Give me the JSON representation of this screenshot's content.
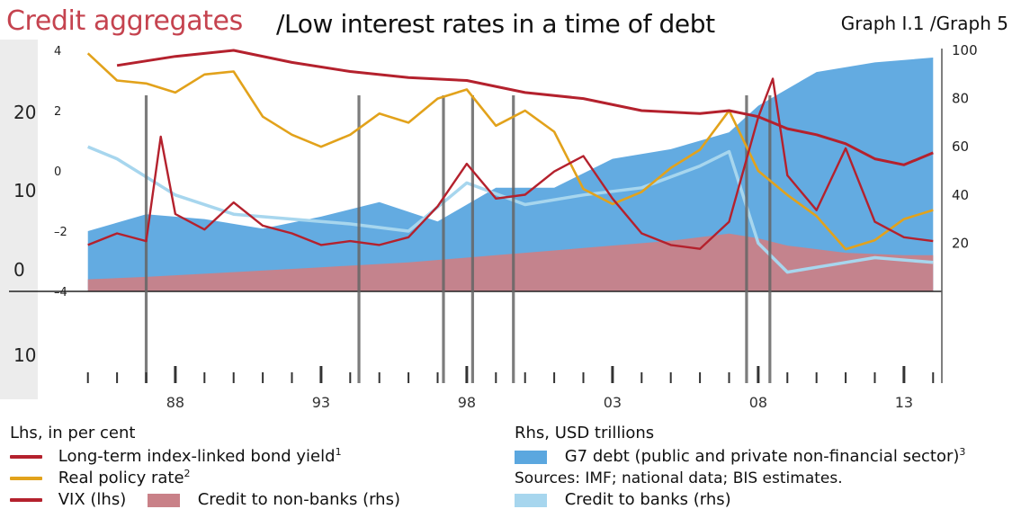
{
  "header": {
    "title_left": "Credit aggregates",
    "title_main": "/Low interest rates in a time of debt",
    "graph_ref": "Graph I.1 /Graph 5"
  },
  "chart_data": {
    "type": "line",
    "x_ticks": [
      "88",
      "93",
      "98",
      "03",
      "08",
      "13"
    ],
    "left_axis_outer": {
      "ticks": [
        "20",
        "10",
        "0",
        "10"
      ],
      "values": [
        20,
        10,
        0,
        -10
      ]
    },
    "left_axis_inner": {
      "ticks": [
        "4",
        "2",
        "0",
        "–2",
        "–4"
      ],
      "values": [
        4,
        2,
        0,
        -2,
        -4
      ]
    },
    "right_axis": {
      "ticks": [
        "100",
        "80",
        "60",
        "40",
        "20"
      ],
      "values": [
        100,
        80,
        60,
        40,
        20
      ]
    },
    "legend": {
      "lhs_heading": "Lhs, in per cent",
      "rhs_heading": "Rhs, USD trillions",
      "items": [
        {
          "name": "Long-term index-linked bond yield",
          "sup": "1",
          "kind": "line",
          "color": "#b4212d"
        },
        {
          "name": "Real policy rate",
          "sup": "2",
          "kind": "line",
          "color": "#e2a21b"
        },
        {
          "name": "VIX (lhs)",
          "sup": "",
          "kind": "line",
          "color": "#b4212d"
        },
        {
          "name": "Credit to non-banks (rhs)",
          "sup": "",
          "kind": "area",
          "color": "#c98188"
        },
        {
          "name": "G7 debt (public and private non-financial sector)",
          "sup": "3",
          "kind": "area",
          "color": "#5ba7df"
        },
        {
          "name": "Credit to banks (rhs)",
          "sup": "",
          "kind": "area",
          "color": "#a7d6ee"
        }
      ]
    },
    "sources": "Sources: IMF; national data; BIS estimates.",
    "colors": {
      "bond_yield": "#b4212d",
      "policy_rate": "#e2a21b",
      "vix": "#b4212d",
      "g7_debt": "#5ba7df",
      "credit_non_banks": "#c98188",
      "credit_banks": "#a7d6ee",
      "event_lines": "#666666"
    },
    "series": {
      "bond_yield": [
        [
          1986,
          3.5
        ],
        [
          1988,
          3.8
        ],
        [
          1990,
          4.0
        ],
        [
          1992,
          3.6
        ],
        [
          1994,
          3.3
        ],
        [
          1996,
          3.1
        ],
        [
          1998,
          3.0
        ],
        [
          2000,
          2.6
        ],
        [
          2002,
          2.4
        ],
        [
          2004,
          2.0
        ],
        [
          2006,
          1.9
        ],
        [
          2007,
          2.0
        ],
        [
          2008,
          1.8
        ],
        [
          2009,
          1.4
        ],
        [
          2010,
          1.2
        ],
        [
          2011,
          0.9
        ],
        [
          2012,
          0.4
        ],
        [
          2013,
          0.2
        ],
        [
          2014,
          0.6
        ]
      ],
      "policy_rate": [
        [
          1985,
          3.9
        ],
        [
          1986,
          3.0
        ],
        [
          1987,
          2.9
        ],
        [
          1988,
          2.6
        ],
        [
          1989,
          3.2
        ],
        [
          1990,
          3.3
        ],
        [
          1991,
          1.8
        ],
        [
          1992,
          1.2
        ],
        [
          1993,
          0.8
        ],
        [
          1994,
          1.2
        ],
        [
          1995,
          1.9
        ],
        [
          1996,
          1.6
        ],
        [
          1997,
          2.4
        ],
        [
          1998,
          2.7
        ],
        [
          1999,
          1.5
        ],
        [
          2000,
          2.0
        ],
        [
          2001,
          1.3
        ],
        [
          2002,
          -0.6
        ],
        [
          2003,
          -1.1
        ],
        [
          2004,
          -0.7
        ],
        [
          2005,
          0.1
        ],
        [
          2006,
          0.7
        ],
        [
          2007,
          2.0
        ],
        [
          2008,
          0.0
        ],
        [
          2009,
          -0.8
        ],
        [
          2010,
          -1.5
        ],
        [
          2011,
          -2.6
        ],
        [
          2012,
          -2.3
        ],
        [
          2013,
          -1.6
        ],
        [
          2014,
          -1.3
        ]
      ],
      "vix": [
        [
          1985,
          12
        ],
        [
          1986,
          15
        ],
        [
          1987,
          13
        ],
        [
          1987.5,
          40
        ],
        [
          1988,
          20
        ],
        [
          1989,
          16
        ],
        [
          1990,
          23
        ],
        [
          1991,
          17
        ],
        [
          1992,
          15
        ],
        [
          1993,
          12
        ],
        [
          1994,
          13
        ],
        [
          1995,
          12
        ],
        [
          1996,
          14
        ],
        [
          1997,
          22
        ],
        [
          1998,
          33
        ],
        [
          1999,
          24
        ],
        [
          2000,
          25
        ],
        [
          2001,
          31
        ],
        [
          2002,
          35
        ],
        [
          2003,
          24
        ],
        [
          2004,
          15
        ],
        [
          2005,
          12
        ],
        [
          2006,
          11
        ],
        [
          2007,
          18
        ],
        [
          2008,
          45
        ],
        [
          2008.5,
          55
        ],
        [
          2009,
          30
        ],
        [
          2010,
          21
        ],
        [
          2011,
          37
        ],
        [
          2012,
          18
        ],
        [
          2013,
          14
        ],
        [
          2014,
          13
        ]
      ],
      "g7_debt": [
        [
          1985,
          25
        ],
        [
          1987,
          32
        ],
        [
          1989,
          30
        ],
        [
          1991,
          26
        ],
        [
          1993,
          31
        ],
        [
          1995,
          37
        ],
        [
          1997,
          29
        ],
        [
          1999,
          43
        ],
        [
          2001,
          43
        ],
        [
          2003,
          55
        ],
        [
          2005,
          59
        ],
        [
          2007,
          66
        ],
        [
          2008,
          77
        ],
        [
          2010,
          91
        ],
        [
          2012,
          95
        ],
        [
          2014,
          97
        ]
      ],
      "credit_non_banks": [
        [
          1985,
          5
        ],
        [
          1987,
          6
        ],
        [
          1990,
          8
        ],
        [
          1993,
          10
        ],
        [
          1996,
          12
        ],
        [
          1999,
          15
        ],
        [
          2002,
          18
        ],
        [
          2005,
          21
        ],
        [
          2007,
          24
        ],
        [
          2008,
          22
        ],
        [
          2009,
          19
        ],
        [
          2011,
          16
        ],
        [
          2013,
          15
        ],
        [
          2014,
          15
        ]
      ],
      "credit_banks": [
        [
          1985,
          60
        ],
        [
          1986,
          55
        ],
        [
          1988,
          40
        ],
        [
          1990,
          32
        ],
        [
          1992,
          30
        ],
        [
          1994,
          28
        ],
        [
          1996,
          25
        ],
        [
          1998,
          45
        ],
        [
          2000,
          36
        ],
        [
          2002,
          40
        ],
        [
          2004,
          43
        ],
        [
          2006,
          52
        ],
        [
          2007,
          58
        ],
        [
          2008,
          20
        ],
        [
          2009,
          8
        ],
        [
          2010,
          10
        ],
        [
          2012,
          14
        ],
        [
          2014,
          12
        ]
      ]
    },
    "event_lines": [
      1987.0,
      1994.3,
      1997.2,
      1998.2,
      1999.6,
      2007.6,
      2008.4
    ]
  }
}
